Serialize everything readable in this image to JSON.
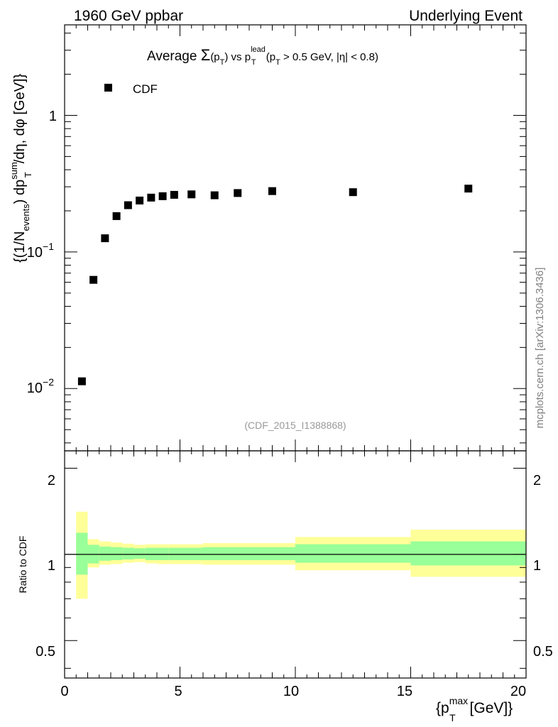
{
  "header": {
    "left": "1960 GeV ppbar",
    "right": "Underlying Event"
  },
  "title": {
    "prefix": "Average ",
    "sigma": "Σ",
    "p1": "(p",
    "p1_sub": "T",
    "p1_close": ")",
    "vs": " vs p",
    "lead_sup": "lead",
    "lead_sub": "T",
    "cut_open": " (p",
    "cut_sub": "T",
    "cut_rest": " > 0.5 GeV, |η| < 0.8)"
  },
  "legend": {
    "label": "CDF",
    "placement": "top-left"
  },
  "analysis_id": "(CDF_2015_I1388868)",
  "side_label": "mcplots.cern.ch [arXiv:1306.3436]",
  "ylabel": {
    "a": "{(1/N",
    "a_sub": "events",
    "b": ") dp",
    "b_sup": "sum",
    "b_sub": "T",
    "c": "/dη, dφ [GeV]}"
  },
  "xlabel": {
    "a": "{p",
    "a_sup": "max",
    "a_sub": "T",
    "b": " [GeV]}"
  },
  "ratio_ylabel": "Ratio to CDF",
  "main_ticks": {
    "t1": "1",
    "t01_base": "10",
    "t01_exp": "−1",
    "t001_base": "10",
    "t001_exp": "−2"
  },
  "ratio_ticks": [
    "2",
    "1",
    "0.5"
  ],
  "x_ticks": [
    "0",
    "5",
    "10",
    "15",
    "20"
  ],
  "colors": {
    "marker": "#000000",
    "band_inner": "#99ff99",
    "band_outer": "#ffff99",
    "analysis_id": "#999999",
    "side_label": "#808080"
  },
  "chart_data": [
    {
      "type": "scatter",
      "yscale": "log",
      "xlim": [
        0,
        20
      ],
      "ylim": [
        0.0035,
        4.6
      ],
      "series": [
        {
          "name": "CDF",
          "x": [
            0.75,
            1.25,
            1.75,
            2.25,
            2.75,
            3.25,
            3.75,
            4.25,
            4.75,
            5.5,
            6.5,
            7.5,
            9.0,
            12.5,
            17.5
          ],
          "y": [
            0.0113,
            0.0625,
            0.126,
            0.183,
            0.22,
            0.238,
            0.25,
            0.256,
            0.262,
            0.264,
            0.26,
            0.27,
            0.279,
            0.274,
            0.291
          ]
        }
      ]
    },
    {
      "type": "area",
      "yscale": "log",
      "xlim": [
        0,
        20
      ],
      "ylim": [
        0.37,
        2.3
      ],
      "bins": [
        {
          "x0": 0.5,
          "x1": 1.0,
          "inner": [
            0.85,
            1.19
          ],
          "outer": [
            0.7,
            1.41
          ]
        },
        {
          "x0": 1.0,
          "x1": 1.5,
          "inner": [
            0.93,
            1.08
          ],
          "outer": [
            0.9,
            1.13
          ]
        },
        {
          "x0": 1.5,
          "x1": 2.0,
          "inner": [
            0.95,
            1.065
          ],
          "outer": [
            0.92,
            1.11
          ]
        },
        {
          "x0": 2.0,
          "x1": 2.5,
          "inner": [
            0.955,
            1.06
          ],
          "outer": [
            0.925,
            1.1
          ]
        },
        {
          "x0": 2.5,
          "x1": 3.0,
          "inner": [
            0.96,
            1.055
          ],
          "outer": [
            0.935,
            1.09
          ]
        },
        {
          "x0": 3.0,
          "x1": 3.5,
          "inner": [
            0.965,
            1.05
          ],
          "outer": [
            0.94,
            1.08
          ]
        },
        {
          "x0": 3.5,
          "x1": 4.0,
          "inner": [
            0.955,
            1.055
          ],
          "outer": [
            0.93,
            1.085
          ]
        },
        {
          "x0": 4.0,
          "x1": 4.5,
          "inner": [
            0.955,
            1.055
          ],
          "outer": [
            0.925,
            1.085
          ]
        },
        {
          "x0": 4.5,
          "x1": 5.0,
          "inner": [
            0.955,
            1.055
          ],
          "outer": [
            0.925,
            1.085
          ]
        },
        {
          "x0": 5.0,
          "x1": 6.0,
          "inner": [
            0.955,
            1.055
          ],
          "outer": [
            0.925,
            1.085
          ]
        },
        {
          "x0": 6.0,
          "x1": 7.0,
          "inner": [
            0.955,
            1.06
          ],
          "outer": [
            0.92,
            1.095
          ]
        },
        {
          "x0": 7.0,
          "x1": 8.0,
          "inner": [
            0.955,
            1.06
          ],
          "outer": [
            0.92,
            1.095
          ]
        },
        {
          "x0": 8.0,
          "x1": 10.0,
          "inner": [
            0.955,
            1.06
          ],
          "outer": [
            0.92,
            1.095
          ]
        },
        {
          "x0": 10.0,
          "x1": 15.0,
          "inner": [
            0.935,
            1.085
          ],
          "outer": [
            0.88,
            1.15
          ]
        },
        {
          "x0": 15.0,
          "x1": 20.0,
          "inner": [
            0.915,
            1.11
          ],
          "outer": [
            0.835,
            1.22
          ]
        }
      ],
      "reference_line": 1.0
    }
  ]
}
